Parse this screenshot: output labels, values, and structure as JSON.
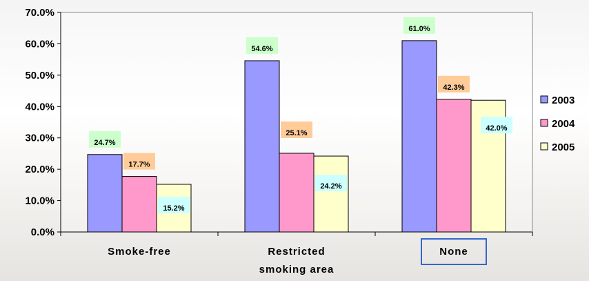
{
  "chart_data": {
    "type": "bar",
    "categories": [
      [
        "Smoke-free"
      ],
      [
        "Restricted",
        "smoking area"
      ],
      [
        "None"
      ]
    ],
    "series": [
      {
        "name": "2003",
        "values": [
          24.7,
          54.6,
          61.0
        ],
        "color": "#9999ff",
        "label_bg": "#ccffcc"
      },
      {
        "name": "2004",
        "values": [
          17.7,
          25.1,
          42.3
        ],
        "color": "#ff99cc",
        "label_bg": "#ffcc99"
      },
      {
        "name": "2005",
        "values": [
          15.2,
          24.2,
          42.0
        ],
        "color": "#ffffcc",
        "label_bg": "#ccffff"
      }
    ],
    "data_labels": [
      [
        "24.7%",
        "54.6%",
        "61.0%"
      ],
      [
        "17.7%",
        "25.1%",
        "42.3%"
      ],
      [
        "15.2%",
        "24.2%",
        "42.0%"
      ]
    ],
    "y_ticks": [
      "0.0%",
      "10.0%",
      "20.0%",
      "30.0%",
      "40.0%",
      "50.0%",
      "60.0%",
      "70.0%"
    ],
    "ylim": [
      0,
      70
    ],
    "highlighted_category": "None",
    "highlight_color": "#3366cc",
    "legend_position": "right",
    "grid": false,
    "title": "",
    "xlabel": "",
    "ylabel": ""
  }
}
